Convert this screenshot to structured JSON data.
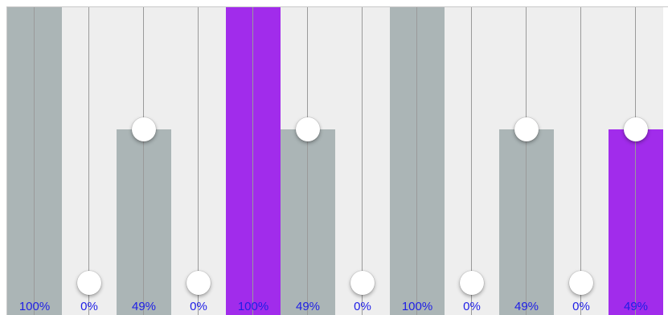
{
  "sliders": [
    {
      "label": "100%",
      "value": 1.0,
      "color": "gray"
    },
    {
      "label": "0%",
      "value": 0.0,
      "color": "gray"
    },
    {
      "label": "49%",
      "value": 0.49,
      "color": "gray"
    },
    {
      "label": "0%",
      "value": 0.0,
      "color": "gray"
    },
    {
      "label": "100%",
      "value": 1.0,
      "color": "purple"
    },
    {
      "label": "49%",
      "value": 0.49,
      "color": "gray"
    },
    {
      "label": "0%",
      "value": 0.0,
      "color": "gray"
    },
    {
      "label": "100%",
      "value": 1.0,
      "color": "gray"
    },
    {
      "label": "0%",
      "value": 0.0,
      "color": "gray"
    },
    {
      "label": "49%",
      "value": 0.49,
      "color": "gray"
    },
    {
      "label": "0%",
      "value": 0.0,
      "color": "gray"
    },
    {
      "label": "49%",
      "value": 0.49,
      "color": "purple"
    }
  ],
  "colors": {
    "track_background": "#eeeeee",
    "gray_fill": "#abb5b6",
    "purple_fill": "#a12ceb",
    "label_text": "#1e1ee6"
  }
}
